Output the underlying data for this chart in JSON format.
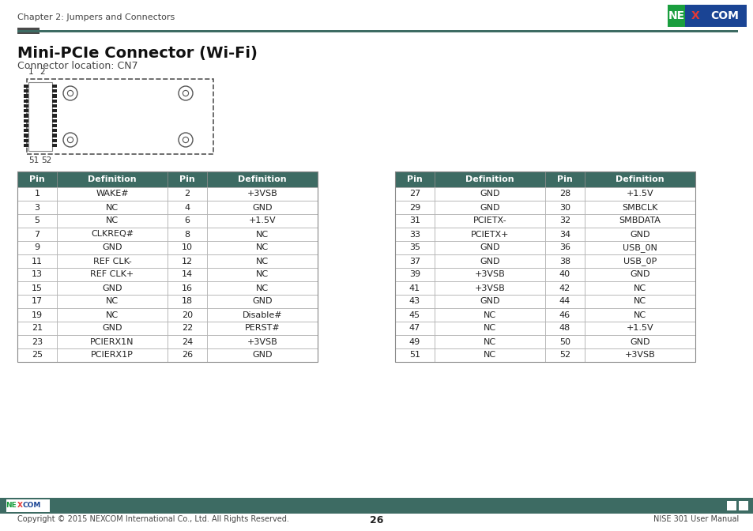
{
  "title": "Mini-PCIe Connector (Wi-Fi)",
  "subtitle": "Connector location: CN7",
  "header_color": "#3d6b63",
  "chapter_text": "Chapter 2: Jumpers and Connectors",
  "footer_left": "Copyright © 2015 NEXCOM International Co., Ltd. All Rights Reserved.",
  "footer_center": "26",
  "footer_right": "NISE 301 User Manual",
  "table1_headers": [
    "Pin",
    "Definition",
    "Pin",
    "Definition"
  ],
  "table1_data": [
    [
      "1",
      "WAKE#",
      "2",
      "+3VSB"
    ],
    [
      "3",
      "NC",
      "4",
      "GND"
    ],
    [
      "5",
      "NC",
      "6",
      "+1.5V"
    ],
    [
      "7",
      "CLKREQ#",
      "8",
      "NC"
    ],
    [
      "9",
      "GND",
      "10",
      "NC"
    ],
    [
      "11",
      "REF CLK-",
      "12",
      "NC"
    ],
    [
      "13",
      "REF CLK+",
      "14",
      "NC"
    ],
    [
      "15",
      "GND",
      "16",
      "NC"
    ],
    [
      "17",
      "NC",
      "18",
      "GND"
    ],
    [
      "19",
      "NC",
      "20",
      "Disable#"
    ],
    [
      "21",
      "GND",
      "22",
      "PERST#"
    ],
    [
      "23",
      "PCIERX1N",
      "24",
      "+3VSB"
    ],
    [
      "25",
      "PCIERX1P",
      "26",
      "GND"
    ]
  ],
  "table2_headers": [
    "Pin",
    "Definition",
    "Pin",
    "Definition"
  ],
  "table2_data": [
    [
      "27",
      "GND",
      "28",
      "+1.5V"
    ],
    [
      "29",
      "GND",
      "30",
      "SMBCLK"
    ],
    [
      "31",
      "PCIETX-",
      "32",
      "SMBDATA"
    ],
    [
      "33",
      "PCIETX+",
      "34",
      "GND"
    ],
    [
      "35",
      "GND",
      "36",
      "USB_0N"
    ],
    [
      "37",
      "GND",
      "38",
      "USB_0P"
    ],
    [
      "39",
      "+3VSB",
      "40",
      "GND"
    ],
    [
      "41",
      "+3VSB",
      "42",
      "NC"
    ],
    [
      "43",
      "GND",
      "44",
      "NC"
    ],
    [
      "45",
      "NC",
      "46",
      "NC"
    ],
    [
      "47",
      "NC",
      "48",
      "+1.5V"
    ],
    [
      "49",
      "NC",
      "50",
      "GND"
    ],
    [
      "51",
      "NC",
      "52",
      "+3VSB"
    ]
  ],
  "nexcom_green": "#1a9e3e",
  "nexcom_blue": "#1a4494",
  "nexcom_bg": "#3d6b63"
}
